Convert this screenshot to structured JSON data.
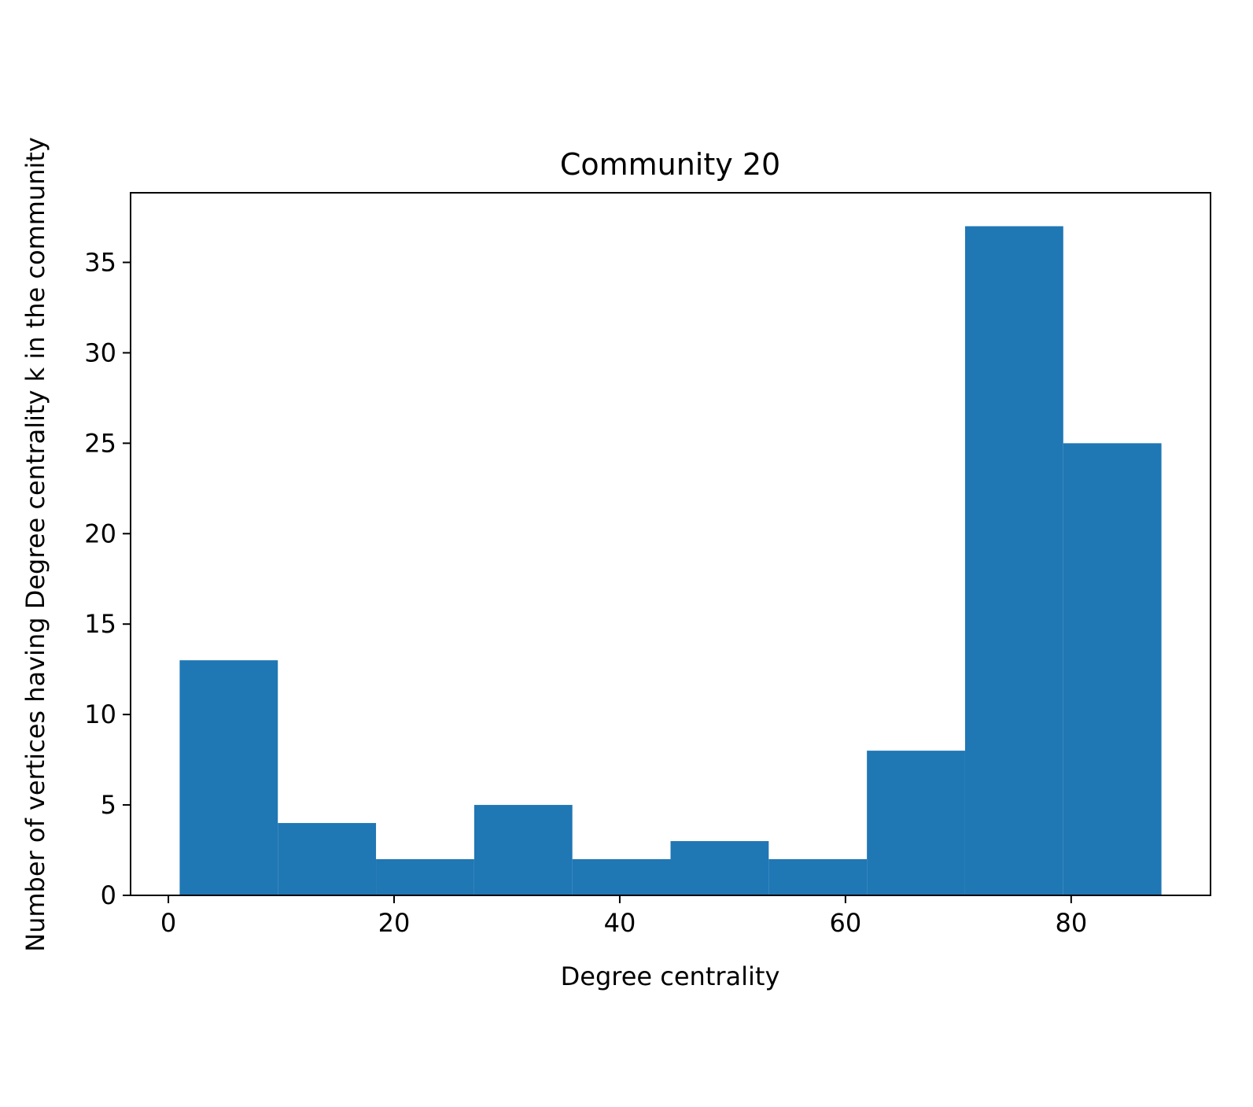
{
  "chart_data": {
    "type": "histogram",
    "title": "Community 20",
    "xlabel": "Degree centrality",
    "ylabel": "Number of vertices having Degree centrality k in the community",
    "bins": [
      1,
      9.7,
      18.4,
      27.1,
      35.8,
      44.5,
      53.2,
      61.9,
      70.6,
      79.3,
      88
    ],
    "values": [
      13,
      4,
      2,
      5,
      2,
      3,
      2,
      8,
      37,
      25
    ],
    "color": "#1f77b4",
    "xlim": [
      -3.35,
      92.35
    ],
    "xticks": [
      0,
      20,
      40,
      60,
      80
    ],
    "ylim": [
      0,
      38.85
    ],
    "yticks": [
      0,
      5,
      10,
      15,
      20,
      25,
      30,
      35
    ]
  }
}
